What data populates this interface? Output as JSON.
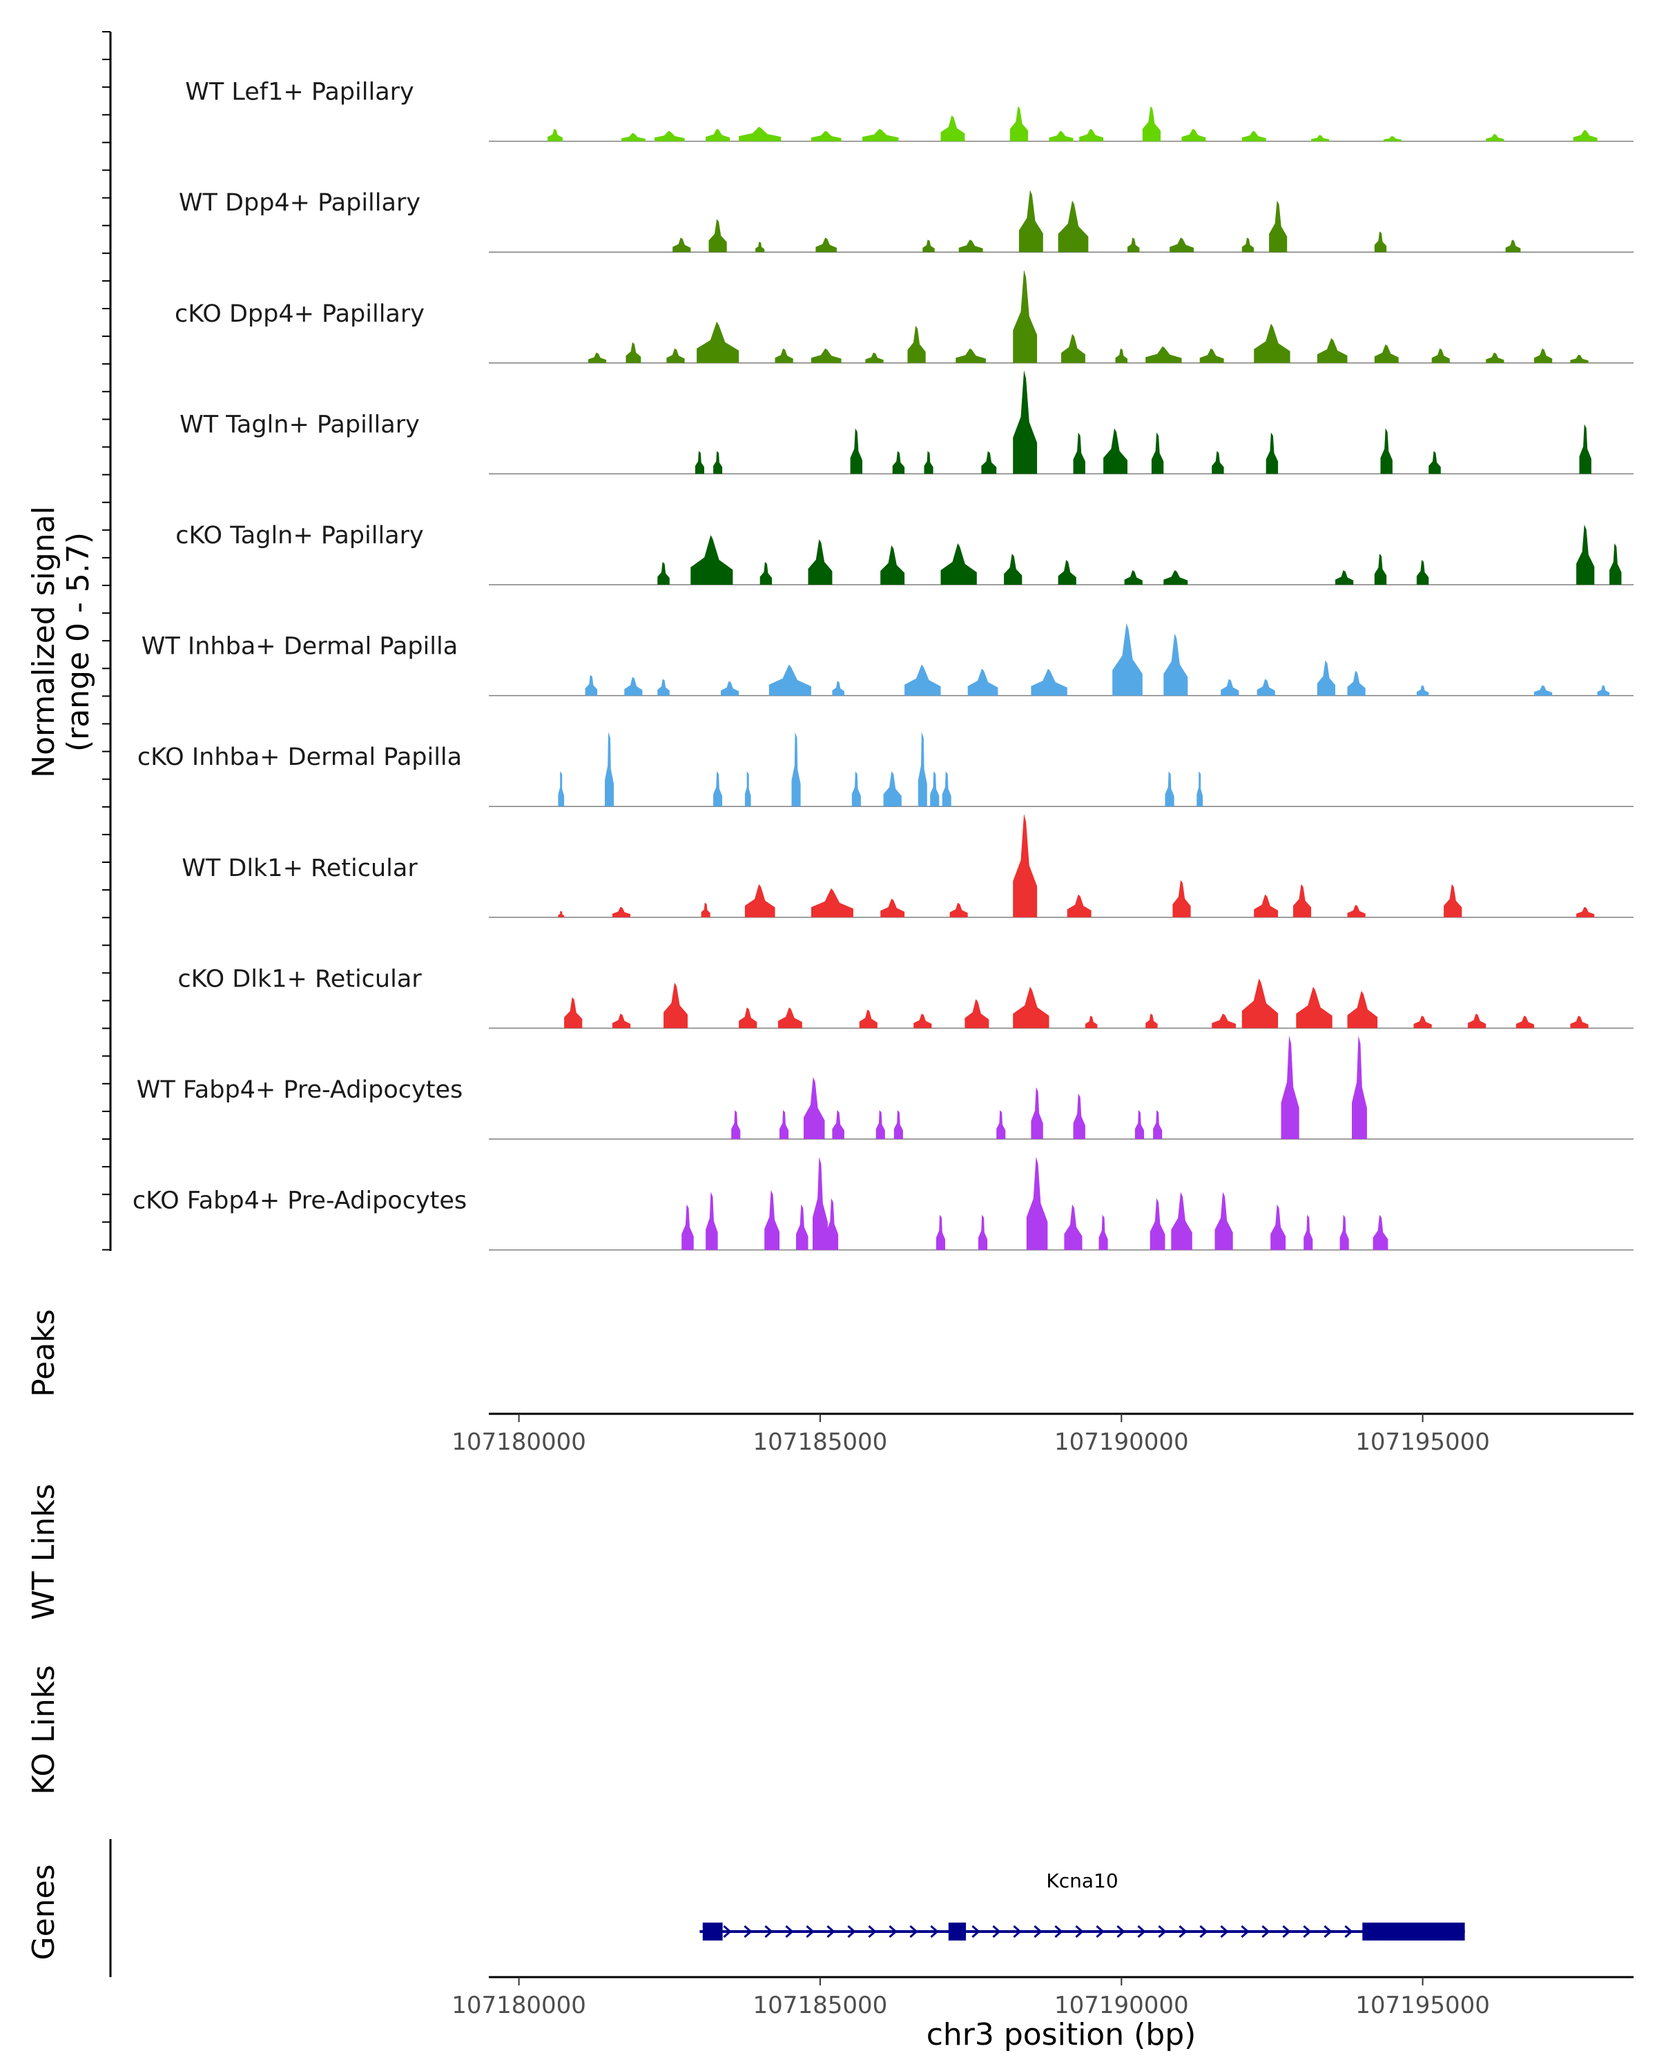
{
  "chart_data": {
    "type": "area",
    "chromosome": "chr3",
    "xlabel": "chr3 position (bp)",
    "xlim": [
      107179500,
      107198500
    ],
    "x_ticks": [
      107180000,
      107185000,
      107190000,
      107195000
    ],
    "x_tick_labels": [
      "107180000",
      "107185000",
      "107190000",
      "107195000"
    ],
    "signal_axis": {
      "label_line1": "Normalized signal",
      "label_line2": "(range 0 - 5.7)",
      "range": [
        0,
        5.7
      ]
    },
    "tracks": [
      {
        "name": "WT Lef1+ Papillary",
        "color": "#66d400",
        "peaks": [
          [
            107180600,
            0.12,
            250
          ],
          [
            107181900,
            0.08,
            400
          ],
          [
            107182500,
            0.1,
            500
          ],
          [
            107183300,
            0.12,
            400
          ],
          [
            107184000,
            0.14,
            700
          ],
          [
            107185100,
            0.1,
            500
          ],
          [
            107186000,
            0.12,
            600
          ],
          [
            107187200,
            0.25,
            400
          ],
          [
            107188300,
            0.34,
            300
          ],
          [
            107189000,
            0.1,
            400
          ],
          [
            107189500,
            0.12,
            400
          ],
          [
            107190500,
            0.34,
            300
          ],
          [
            107191200,
            0.12,
            400
          ],
          [
            107192200,
            0.1,
            400
          ],
          [
            107193300,
            0.06,
            300
          ],
          [
            107194500,
            0.05,
            300
          ],
          [
            107196200,
            0.07,
            300
          ],
          [
            107197700,
            0.11,
            400
          ]
        ]
      },
      {
        "name": "WT Dpp4+ Papillary",
        "color": "#4a8a00",
        "peaks": [
          [
            107182700,
            0.14,
            300
          ],
          [
            107183300,
            0.32,
            300
          ],
          [
            107184000,
            0.1,
            150
          ],
          [
            107185100,
            0.14,
            350
          ],
          [
            107186800,
            0.12,
            200
          ],
          [
            107187500,
            0.12,
            400
          ],
          [
            107188500,
            0.6,
            400
          ],
          [
            107189200,
            0.5,
            500
          ],
          [
            107190200,
            0.14,
            200
          ],
          [
            107191000,
            0.14,
            400
          ],
          [
            107192100,
            0.14,
            200
          ],
          [
            107192600,
            0.5,
            300
          ],
          [
            107194300,
            0.2,
            200
          ],
          [
            107196500,
            0.12,
            250
          ]
        ]
      },
      {
        "name": "cKO Dpp4+ Papillary",
        "color": "#4a8a00",
        "peaks": [
          [
            107181300,
            0.1,
            300
          ],
          [
            107181900,
            0.2,
            250
          ],
          [
            107182600,
            0.14,
            300
          ],
          [
            107183300,
            0.4,
            700
          ],
          [
            107184400,
            0.14,
            300
          ],
          [
            107185100,
            0.14,
            500
          ],
          [
            107185900,
            0.1,
            300
          ],
          [
            107186600,
            0.36,
            300
          ],
          [
            107187500,
            0.14,
            500
          ],
          [
            107188400,
            0.9,
            400
          ],
          [
            107189200,
            0.28,
            400
          ],
          [
            107190000,
            0.14,
            200
          ],
          [
            107190700,
            0.16,
            600
          ],
          [
            107191500,
            0.14,
            400
          ],
          [
            107192500,
            0.38,
            600
          ],
          [
            107193500,
            0.24,
            500
          ],
          [
            107194400,
            0.18,
            400
          ],
          [
            107195300,
            0.14,
            300
          ],
          [
            107196200,
            0.1,
            300
          ],
          [
            107197000,
            0.14,
            300
          ],
          [
            107197600,
            0.08,
            300
          ]
        ]
      },
      {
        "name": "WT Tagln+ Papillary",
        "color": "#005c00",
        "peaks": [
          [
            107183000,
            0.22,
            150
          ],
          [
            107183300,
            0.22,
            150
          ],
          [
            107185600,
            0.44,
            200
          ],
          [
            107186300,
            0.22,
            200
          ],
          [
            107186800,
            0.22,
            150
          ],
          [
            107187800,
            0.22,
            250
          ],
          [
            107188400,
            1.0,
            400
          ],
          [
            107189300,
            0.4,
            200
          ],
          [
            107189900,
            0.44,
            400
          ],
          [
            107190600,
            0.4,
            200
          ],
          [
            107191600,
            0.22,
            200
          ],
          [
            107192500,
            0.4,
            200
          ],
          [
            107194400,
            0.44,
            200
          ],
          [
            107195200,
            0.22,
            200
          ],
          [
            107197700,
            0.48,
            200
          ]
        ]
      },
      {
        "name": "cKO Tagln+ Papillary",
        "color": "#005c00",
        "peaks": [
          [
            107182400,
            0.22,
            200
          ],
          [
            107183200,
            0.48,
            700
          ],
          [
            107184100,
            0.22,
            200
          ],
          [
            107185000,
            0.44,
            400
          ],
          [
            107186200,
            0.38,
            400
          ],
          [
            107187300,
            0.4,
            600
          ],
          [
            107188200,
            0.3,
            300
          ],
          [
            107189100,
            0.24,
            300
          ],
          [
            107190200,
            0.14,
            300
          ],
          [
            107190900,
            0.14,
            400
          ],
          [
            107193700,
            0.14,
            300
          ],
          [
            107194300,
            0.3,
            200
          ],
          [
            107195000,
            0.24,
            200
          ],
          [
            107197700,
            0.58,
            300
          ],
          [
            107198200,
            0.4,
            200
          ]
        ]
      },
      {
        "name": "WT Inhba+ Dermal Papilla",
        "color": "#55a8e6",
        "peaks": [
          [
            107181200,
            0.2,
            200
          ],
          [
            107181900,
            0.18,
            300
          ],
          [
            107182400,
            0.16,
            200
          ],
          [
            107183500,
            0.14,
            300
          ],
          [
            107184500,
            0.3,
            700
          ],
          [
            107185300,
            0.14,
            200
          ],
          [
            107186700,
            0.3,
            600
          ],
          [
            107187700,
            0.26,
            500
          ],
          [
            107188800,
            0.26,
            600
          ],
          [
            107190100,
            0.7,
            500
          ],
          [
            107190900,
            0.6,
            400
          ],
          [
            107191800,
            0.16,
            300
          ],
          [
            107192400,
            0.16,
            300
          ],
          [
            107193400,
            0.34,
            300
          ],
          [
            107193900,
            0.24,
            300
          ],
          [
            107195000,
            0.1,
            200
          ],
          [
            107197000,
            0.1,
            300
          ],
          [
            107198000,
            0.1,
            200
          ]
        ]
      },
      {
        "name": "cKO Inhba+ Dermal Papilla",
        "color": "#55a8e6",
        "peaks": [
          [
            107180700,
            0.34,
            100
          ],
          [
            107181500,
            0.72,
            150
          ],
          [
            107183300,
            0.34,
            150
          ],
          [
            107183800,
            0.34,
            100
          ],
          [
            107184600,
            0.72,
            150
          ],
          [
            107185600,
            0.34,
            150
          ],
          [
            107186200,
            0.34,
            300
          ],
          [
            107186700,
            0.72,
            150
          ],
          [
            107186900,
            0.34,
            150
          ],
          [
            107187100,
            0.34,
            150
          ],
          [
            107190800,
            0.34,
            150
          ],
          [
            107191300,
            0.34,
            100
          ]
        ]
      },
      {
        "name": "WT Dlk1+ Reticular",
        "color": "#ed3030",
        "peaks": [
          [
            107180700,
            0.06,
            100
          ],
          [
            107181700,
            0.1,
            300
          ],
          [
            107183100,
            0.14,
            150
          ],
          [
            107184000,
            0.32,
            500
          ],
          [
            107185200,
            0.28,
            700
          ],
          [
            107186200,
            0.18,
            400
          ],
          [
            107187300,
            0.14,
            300
          ],
          [
            107188400,
            1.0,
            400
          ],
          [
            107189300,
            0.22,
            400
          ],
          [
            107191000,
            0.36,
            300
          ],
          [
            107192400,
            0.22,
            400
          ],
          [
            107193000,
            0.32,
            300
          ],
          [
            107193900,
            0.12,
            300
          ],
          [
            107195500,
            0.32,
            300
          ],
          [
            107197700,
            0.1,
            300
          ]
        ]
      },
      {
        "name": "cKO Dlk1+ Reticular",
        "color": "#ed3030",
        "peaks": [
          [
            107180900,
            0.3,
            300
          ],
          [
            107181700,
            0.14,
            300
          ],
          [
            107182600,
            0.44,
            400
          ],
          [
            107183800,
            0.2,
            300
          ],
          [
            107184500,
            0.2,
            400
          ],
          [
            107185800,
            0.18,
            300
          ],
          [
            107186700,
            0.14,
            300
          ],
          [
            107187600,
            0.28,
            400
          ],
          [
            107188500,
            0.4,
            600
          ],
          [
            107189500,
            0.12,
            200
          ],
          [
            107190500,
            0.14,
            200
          ],
          [
            107191700,
            0.14,
            400
          ],
          [
            107192300,
            0.48,
            600
          ],
          [
            107193200,
            0.4,
            600
          ],
          [
            107194000,
            0.36,
            500
          ],
          [
            107195000,
            0.12,
            300
          ],
          [
            107195900,
            0.14,
            300
          ],
          [
            107196700,
            0.12,
            300
          ],
          [
            107197600,
            0.12,
            300
          ]
        ]
      },
      {
        "name": "WT Fabp4+ Pre-Adipocytes",
        "color": "#b03cf0",
        "peaks": [
          [
            107183600,
            0.28,
            150
          ],
          [
            107184400,
            0.28,
            150
          ],
          [
            107184900,
            0.6,
            350
          ],
          [
            107185300,
            0.28,
            200
          ],
          [
            107186000,
            0.28,
            150
          ],
          [
            107186300,
            0.28,
            150
          ],
          [
            107188000,
            0.28,
            150
          ],
          [
            107188600,
            0.5,
            200
          ],
          [
            107189300,
            0.44,
            200
          ],
          [
            107190300,
            0.28,
            150
          ],
          [
            107190600,
            0.28,
            150
          ],
          [
            107192800,
            1.0,
            300
          ],
          [
            107193950,
            1.0,
            250
          ]
        ]
      },
      {
        "name": "cKO Fabp4+ Pre-Adipocytes",
        "color": "#b03cf0",
        "peaks": [
          [
            107182800,
            0.44,
            200
          ],
          [
            107183200,
            0.56,
            200
          ],
          [
            107184200,
            0.58,
            250
          ],
          [
            107184700,
            0.44,
            200
          ],
          [
            107185000,
            0.9,
            250
          ],
          [
            107185200,
            0.5,
            200
          ],
          [
            107187000,
            0.34,
            150
          ],
          [
            107187700,
            0.34,
            150
          ],
          [
            107188600,
            0.9,
            350
          ],
          [
            107189200,
            0.44,
            300
          ],
          [
            107189700,
            0.34,
            150
          ],
          [
            107190600,
            0.5,
            250
          ],
          [
            107191000,
            0.56,
            350
          ],
          [
            107191700,
            0.56,
            300
          ],
          [
            107192600,
            0.44,
            250
          ],
          [
            107193100,
            0.34,
            150
          ],
          [
            107193700,
            0.34,
            150
          ],
          [
            107194300,
            0.34,
            250
          ]
        ]
      }
    ],
    "extra_tracks": [
      {
        "label": "Peaks"
      },
      {
        "label": "WT Links"
      },
      {
        "label": "KO Links"
      },
      {
        "label": "Genes"
      }
    ],
    "genes": [
      {
        "name": "Kcna10",
        "strand": "+",
        "color": "#00008b",
        "start": 107183000,
        "end": 107195700,
        "exons": [
          [
            107183050,
            107183380
          ],
          [
            107187130,
            107187420
          ],
          [
            107194000,
            107195700
          ]
        ]
      }
    ]
  }
}
